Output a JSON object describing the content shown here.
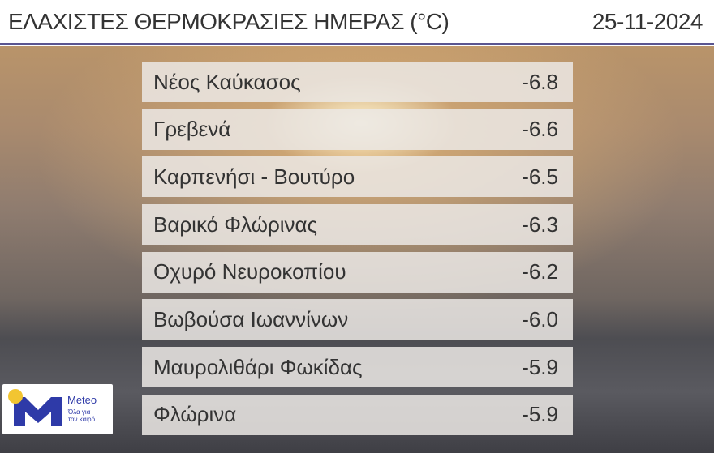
{
  "header": {
    "title": "ΕΛΑΧΙΣΤΕΣ ΘΕΡΜΟΚΡΑΣΙΕΣ ΗΜΕΡΑΣ (°C)",
    "date": "25-11-2024"
  },
  "rows": [
    {
      "station": "Νέος Καύκασος",
      "temp": "-6.8"
    },
    {
      "station": "Γρεβενά",
      "temp": "-6.6"
    },
    {
      "station": "Καρπενήσι - Βουτύρο",
      "temp": "-6.5"
    },
    {
      "station": "Βαρικό Φλώρινας",
      "temp": "-6.3"
    },
    {
      "station": "Οχυρό Νευροκοπίου",
      "temp": "-6.2"
    },
    {
      "station": "Βωβούσα Ιωαννίνων",
      "temp": "-6.0"
    },
    {
      "station": "Μαυρολιθάρι Φωκίδας",
      "temp": "-5.9"
    },
    {
      "station": "Φλώρινα",
      "temp": "-5.9"
    }
  ],
  "logo": {
    "name": "Meteo",
    "slogan": "Όλα για τον καιρό",
    "colors": {
      "brand": "#2e3aa8",
      "sun": "#f2c531"
    }
  }
}
